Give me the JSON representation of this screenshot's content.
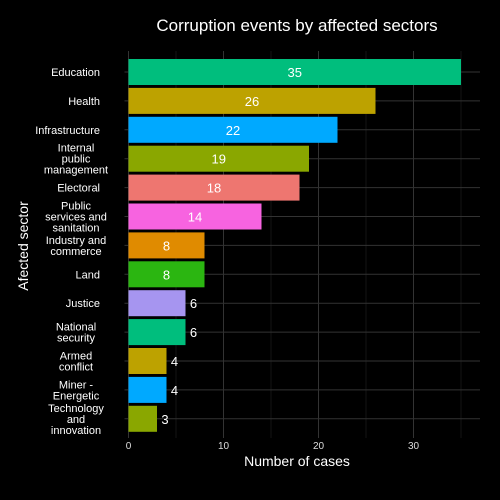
{
  "chart_data": {
    "type": "bar",
    "orientation": "horizontal",
    "title": "Corruption events by affected sectors",
    "xlabel": "Number of cases",
    "ylabel": "Afected sector",
    "xlim": [
      0,
      36
    ],
    "xticks": [
      0,
      10,
      20,
      30
    ],
    "grid": true,
    "legend": "none",
    "background": "#000000",
    "categories": [
      "Education",
      "Health",
      "Infrastructure",
      "Internal public management",
      "Electoral",
      "Public services and sanitation",
      "Industry and commerce",
      "Land",
      "Justice",
      "National security",
      "Armed conflict",
      "Miner - Energetic",
      "Technology and innovation"
    ],
    "category_lines": [
      [
        "Education"
      ],
      [
        "Health"
      ],
      [
        "Infrastructure"
      ],
      [
        "Internal",
        "public",
        "management"
      ],
      [
        "Electoral"
      ],
      [
        "Public",
        "services and",
        "sanitation"
      ],
      [
        "Industry and",
        "commerce"
      ],
      [
        "Land"
      ],
      [
        "Justice"
      ],
      [
        "National",
        "security"
      ],
      [
        "Armed",
        "conflict"
      ],
      [
        "Miner -",
        "Energetic"
      ],
      [
        "Technology",
        "and",
        "innovation"
      ]
    ],
    "values": [
      35,
      26,
      22,
      19,
      18,
      14,
      8,
      8,
      6,
      6,
      4,
      4,
      3
    ],
    "colors": [
      "#00BE7D",
      "#BDA200",
      "#00A9FF",
      "#8AA700",
      "#EE7670",
      "#F763E0",
      "#E08B00",
      "#2BB611",
      "#A695F0",
      "#00BE7D",
      "#BDA200",
      "#00A9FF",
      "#8AA700"
    ]
  }
}
